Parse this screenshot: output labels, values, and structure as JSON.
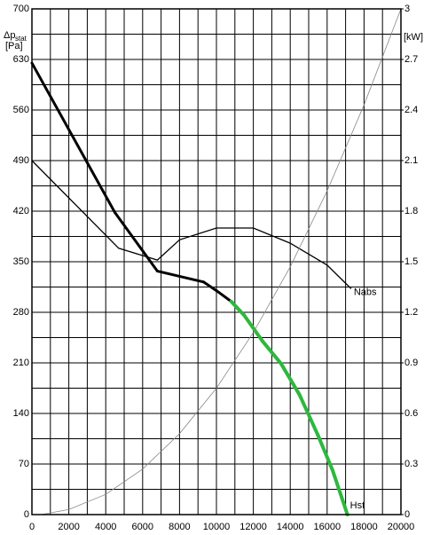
{
  "chart_data": {
    "type": "line",
    "y_label": {
      "main": "Δp",
      "sub": "stat",
      "unit": "[Pa]"
    },
    "y2_label": "[kW]",
    "xlim": [
      0,
      20000
    ],
    "xticks": [
      0,
      2000,
      4000,
      6000,
      8000,
      10000,
      12000,
      14000,
      16000,
      18000,
      20000
    ],
    "xgrid": [
      1000,
      3000,
      5000,
      7000,
      9000,
      11000,
      13000,
      15000,
      17000,
      19000
    ],
    "ylim": [
      0,
      700
    ],
    "yticks": [
      0,
      70,
      140,
      210,
      280,
      350,
      420,
      490,
      560,
      630,
      700
    ],
    "ygrid": [
      35,
      105,
      175,
      245,
      315,
      385,
      455,
      525,
      595,
      665
    ],
    "y2lim": [
      0,
      3
    ],
    "y2ticks": [
      0,
      0.3,
      0.6,
      0.9,
      1.2,
      1.5,
      1.8,
      2.1,
      2.4,
      2.7,
      3
    ],
    "grid": true,
    "series": [
      {
        "name": "Hst",
        "x": [
          0,
          4500,
          6800,
          9300,
          10000,
          10800,
          11500,
          12500,
          13500,
          14500,
          15500,
          16300,
          17100
        ],
        "values": [
          625,
          418,
          337,
          322,
          310,
          295,
          276,
          240,
          209,
          166,
          110,
          61,
          0
        ],
        "colors": [
          "#000000",
          "#000000",
          "#000000",
          "#000000",
          "#000000",
          "#2db83d",
          "#2db83d",
          "#2db83d",
          "#2db83d",
          "#2db83d",
          "#2db83d",
          "#2db83d"
        ],
        "width": [
          3,
          3,
          3,
          3,
          3,
          4,
          4,
          4,
          4,
          4,
          4,
          4
        ]
      },
      {
        "name": "Nabs",
        "axis": "y2",
        "color": "#000000",
        "x": [
          0,
          4700,
          6800,
          8000,
          10000,
          11000,
          12000,
          14000,
          16000,
          17300
        ],
        "values": [
          2.1,
          1.58,
          1.51,
          1.63,
          1.7,
          1.7,
          1.7,
          1.61,
          1.48,
          1.34
        ]
      },
      {
        "color": "#888888",
        "x": [
          500,
          2000,
          4000,
          6000,
          8000,
          10000,
          12000,
          14000,
          16000,
          18000,
          20000
        ],
        "values": [
          0,
          7,
          28,
          63,
          112,
          175,
          252,
          343,
          448,
          567,
          700
        ]
      }
    ]
  }
}
